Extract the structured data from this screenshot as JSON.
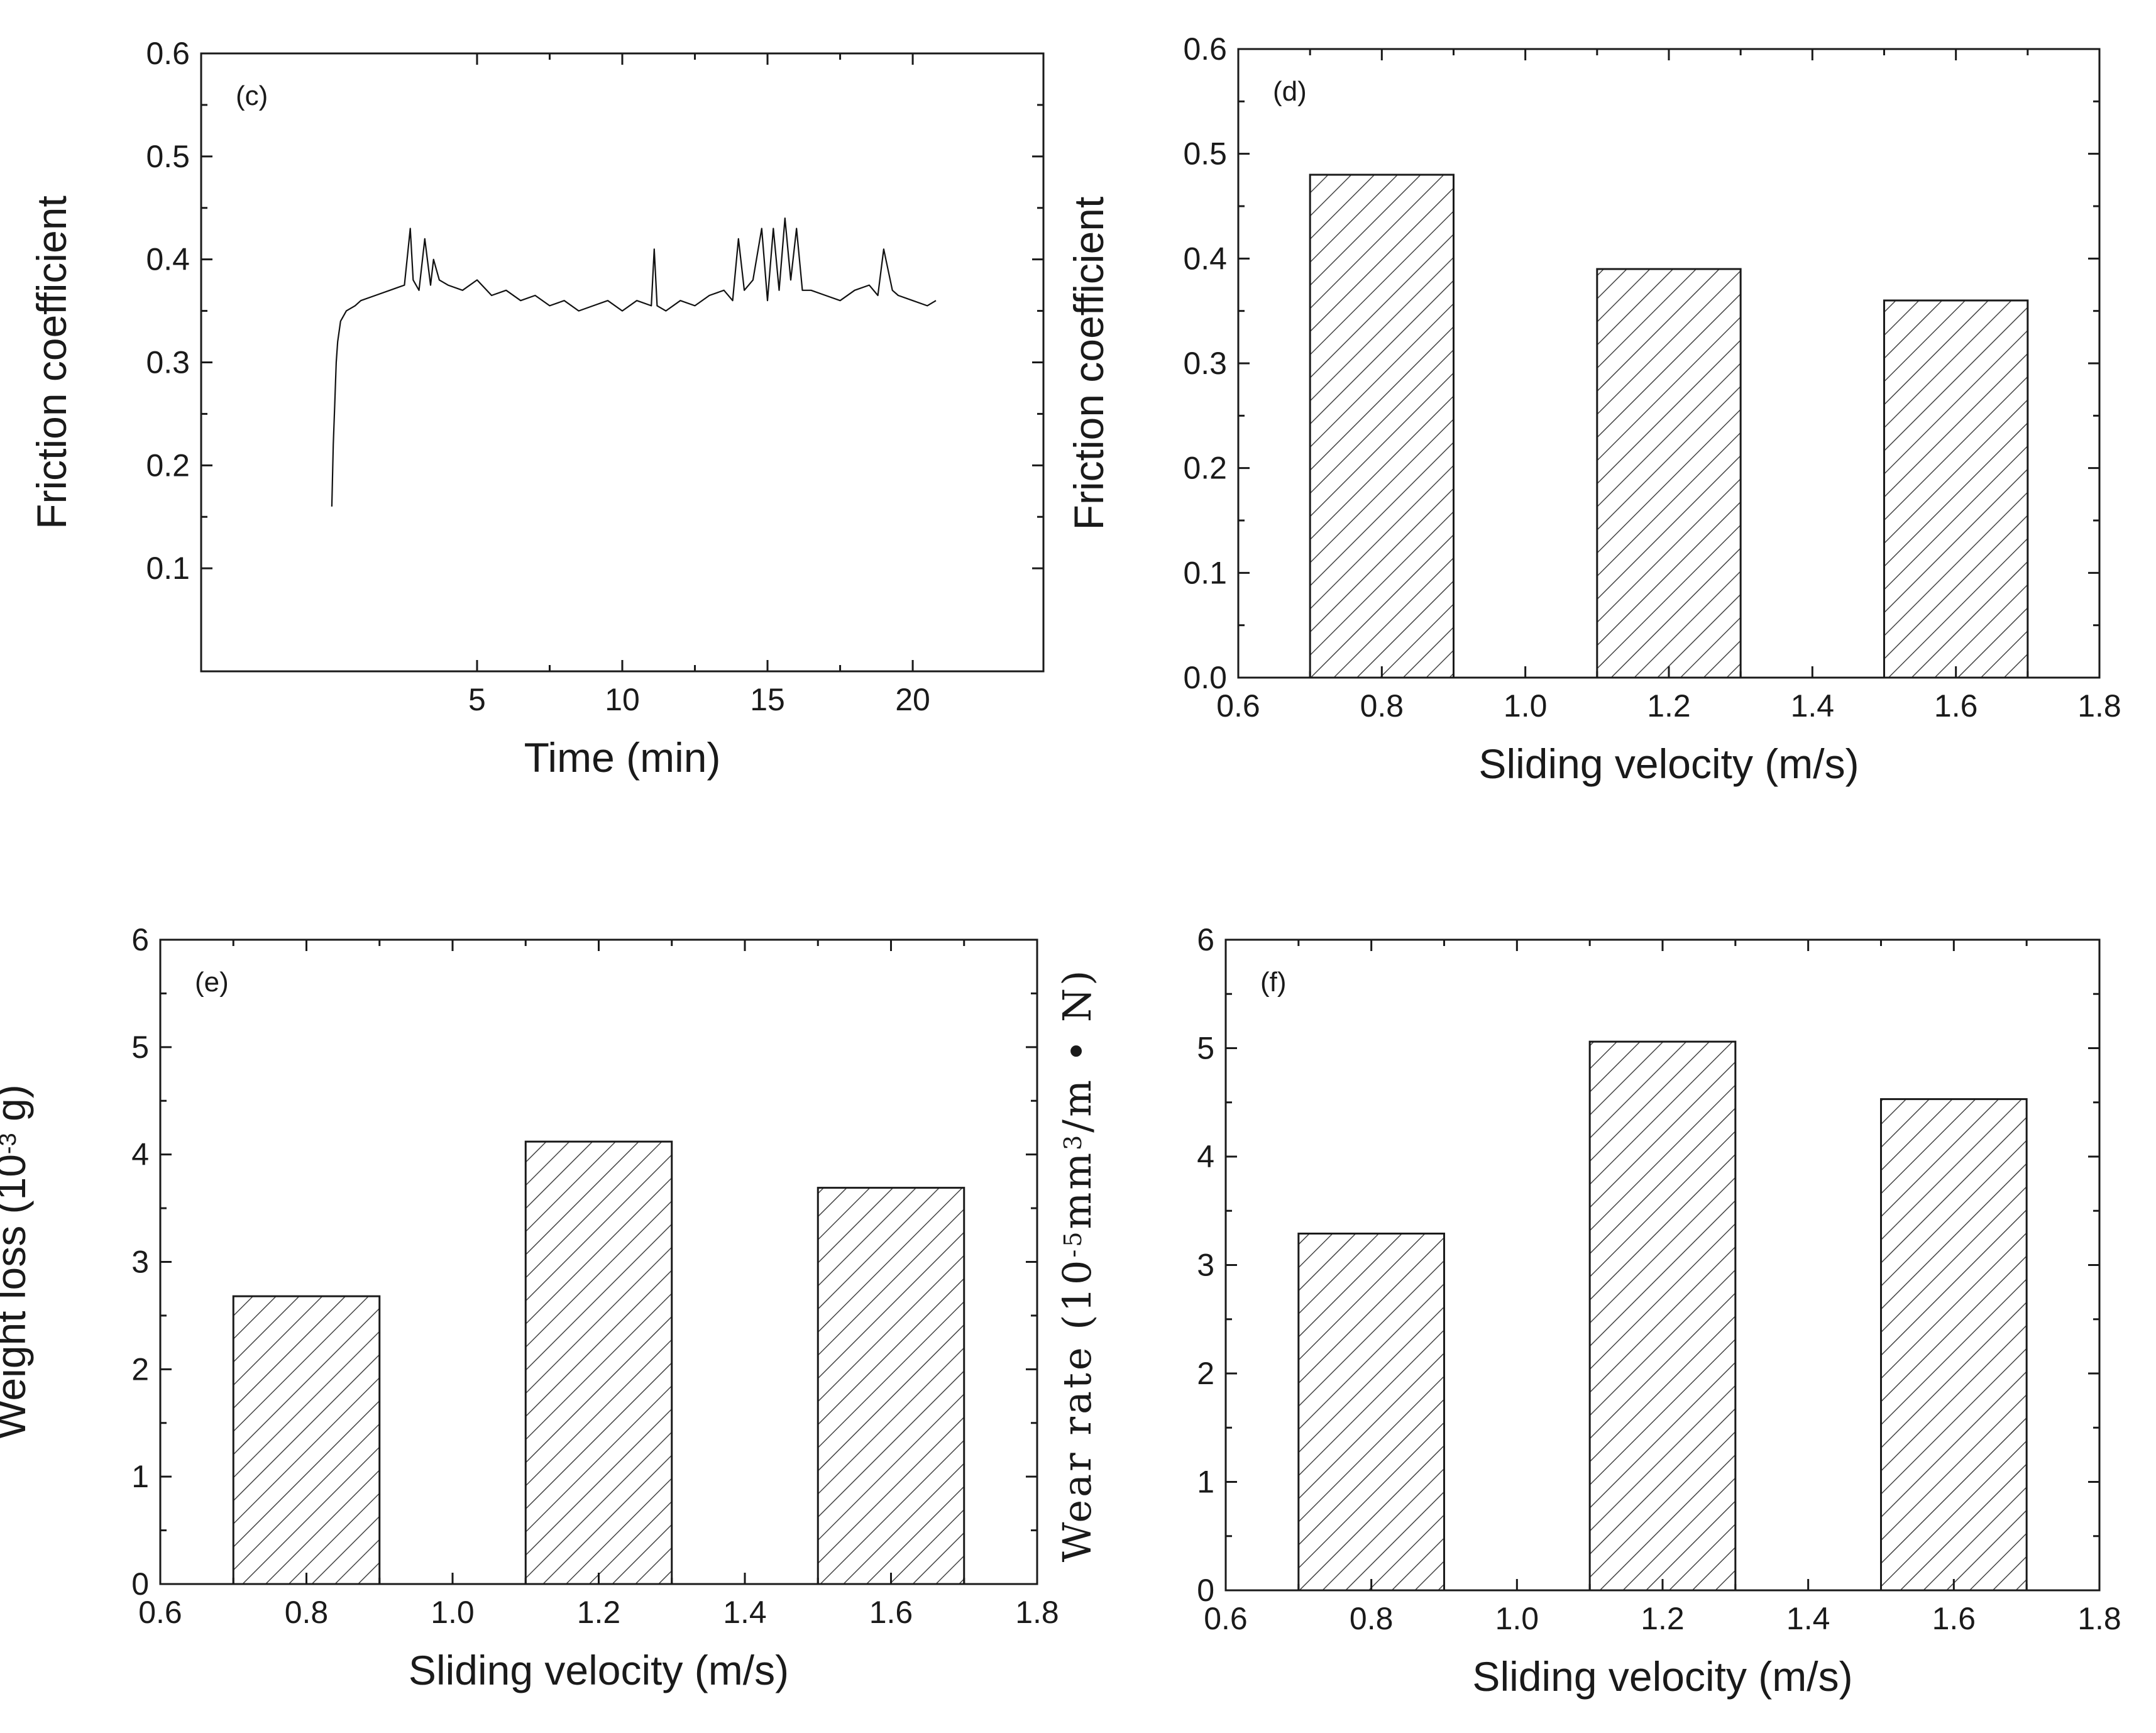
{
  "colors": {
    "ink": "#1a1a1a",
    "background": "#ffffff",
    "hatch": "#444444"
  },
  "chart_data": [
    {
      "id": "c",
      "type": "line",
      "panel_label": "(c)",
      "title": "",
      "xlabel": "Time (min)",
      "ylabel": "Friction coefficient",
      "xlim": [
        -4.5,
        24.5
      ],
      "ylim": [
        0.0,
        0.6
      ],
      "xticks": [
        5,
        10,
        15,
        20
      ],
      "yticks": [
        0.1,
        0.2,
        0.3,
        0.4,
        0.5,
        0.6
      ],
      "series": [
        {
          "name": "friction",
          "x": [
            0.0,
            0.05,
            0.1,
            0.15,
            0.2,
            0.3,
            0.5,
            0.8,
            1.0,
            1.5,
            2.0,
            2.5,
            2.7,
            2.8,
            3.0,
            3.2,
            3.4,
            3.5,
            3.7,
            4.0,
            4.5,
            5.0,
            5.5,
            6.0,
            6.5,
            7.0,
            7.5,
            8.0,
            8.5,
            9.0,
            9.5,
            10.0,
            10.5,
            11.0,
            11.1,
            11.2,
            11.5,
            12.0,
            12.5,
            13.0,
            13.5,
            13.8,
            14.0,
            14.2,
            14.5,
            14.8,
            15.0,
            15.2,
            15.4,
            15.6,
            15.8,
            16.0,
            16.2,
            16.5,
            17.0,
            17.5,
            18.0,
            18.5,
            18.8,
            19.0,
            19.3,
            19.5,
            20.0,
            20.5,
            20.8
          ],
          "y": [
            0.16,
            0.22,
            0.26,
            0.3,
            0.32,
            0.34,
            0.35,
            0.355,
            0.36,
            0.365,
            0.37,
            0.375,
            0.43,
            0.38,
            0.37,
            0.42,
            0.375,
            0.4,
            0.38,
            0.375,
            0.37,
            0.38,
            0.365,
            0.37,
            0.36,
            0.365,
            0.355,
            0.36,
            0.35,
            0.355,
            0.36,
            0.35,
            0.36,
            0.355,
            0.41,
            0.355,
            0.35,
            0.36,
            0.355,
            0.365,
            0.37,
            0.36,
            0.42,
            0.37,
            0.38,
            0.43,
            0.36,
            0.43,
            0.37,
            0.44,
            0.38,
            0.43,
            0.37,
            0.37,
            0.365,
            0.36,
            0.37,
            0.375,
            0.365,
            0.41,
            0.37,
            0.365,
            0.36,
            0.355,
            0.36
          ]
        }
      ]
    },
    {
      "id": "d",
      "type": "bar",
      "panel_label": "(d)",
      "title": "",
      "xlabel": "Sliding velocity (m/s)",
      "ylabel": "Friction coefficient",
      "xlim": [
        0.6,
        1.8
      ],
      "ylim": [
        0.0,
        0.6
      ],
      "bar_width": 0.2,
      "xticks": [
        0.6,
        0.8,
        1.0,
        1.2,
        1.4,
        1.6,
        1.8
      ],
      "xtick_labels": [
        "0.6",
        "0.8",
        "1.0",
        "1.2",
        "1.4",
        "1.6",
        "1.8"
      ],
      "yticks": [
        0.0,
        0.1,
        0.2,
        0.3,
        0.4,
        0.5,
        0.6
      ],
      "ytick_labels": [
        "0.0",
        "0.1",
        "0.2",
        "0.3",
        "0.4",
        "0.5",
        "0.6"
      ],
      "x": [
        0.8,
        1.2,
        1.6
      ],
      "values": [
        0.48,
        0.39,
        0.36
      ]
    },
    {
      "id": "e",
      "type": "bar",
      "panel_label": "(e)",
      "title": "",
      "xlabel": "Sliding velocity (m/s)",
      "ylabel": "Weight loss (10",
      "ylabel_sup": "-3",
      "ylabel_tail": " g)",
      "xlim": [
        0.6,
        1.8
      ],
      "ylim": [
        0,
        6
      ],
      "bar_width": 0.2,
      "xticks": [
        0.6,
        0.8,
        1.0,
        1.2,
        1.4,
        1.6,
        1.8
      ],
      "xtick_labels": [
        "0.6",
        "0.8",
        "1.0",
        "1.2",
        "1.4",
        "1.6",
        "1.8"
      ],
      "yticks": [
        0,
        1,
        2,
        3,
        4,
        5,
        6
      ],
      "ytick_labels": [
        "0",
        "1",
        "2",
        "3",
        "4",
        "5",
        "6"
      ],
      "x": [
        0.8,
        1.2,
        1.6
      ],
      "values": [
        2.68,
        4.12,
        3.69
      ]
    },
    {
      "id": "f",
      "type": "bar",
      "panel_label": "(f)",
      "title": "",
      "xlabel": "Sliding velocity (m/s)",
      "ylabel": "Wear rate (10",
      "ylabel_sup": "-5",
      "ylabel_mid": "mm",
      "ylabel_sup2": "3",
      "ylabel_tail": "/m • N)",
      "xlim": [
        0.6,
        1.8
      ],
      "ylim": [
        0,
        6
      ],
      "bar_width": 0.2,
      "xticks": [
        0.6,
        0.8,
        1.0,
        1.2,
        1.4,
        1.6,
        1.8
      ],
      "xtick_labels": [
        "0.6",
        "0.8",
        "1.0",
        "1.2",
        "1.4",
        "1.6",
        "1.8"
      ],
      "yticks": [
        0,
        1,
        2,
        3,
        4,
        5,
        6
      ],
      "ytick_labels": [
        "0",
        "1",
        "2",
        "3",
        "4",
        "5",
        "6"
      ],
      "x": [
        0.8,
        1.2,
        1.6
      ],
      "values": [
        3.29,
        5.06,
        4.53
      ]
    }
  ]
}
